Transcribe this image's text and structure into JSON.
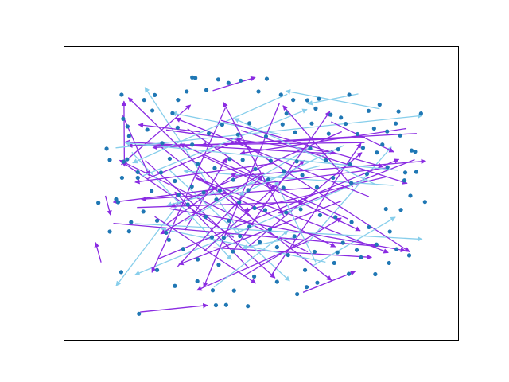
{
  "chart_data": {
    "type": "scatter",
    "title": "",
    "xlabel": "",
    "ylabel": "",
    "axes_visible": false,
    "grid": false,
    "xlim": [
      0,
      100
    ],
    "ylim": [
      0,
      100
    ],
    "colors": {
      "node": "#1f77b4",
      "edge_light": "#87ceeb",
      "edge_purple": "#8a2be2"
    },
    "nodes": [
      [
        14.5,
        23.2
      ],
      [
        19.0,
        9.0
      ],
      [
        38.5,
        11.9
      ],
      [
        23.6,
        23.9
      ],
      [
        25.9,
        36.6
      ],
      [
        8.7,
        46.8
      ],
      [
        11.6,
        37.0
      ],
      [
        16.5,
        37.1
      ],
      [
        15.1,
        60.8
      ],
      [
        10.8,
        65.2
      ],
      [
        11.6,
        61.4
      ],
      [
        13.2,
        48.0
      ],
      [
        16.0,
        61.6
      ],
      [
        18.7,
        55.3
      ],
      [
        18.7,
        57.2
      ],
      [
        14.7,
        55.3
      ],
      [
        16.5,
        69.5
      ],
      [
        16.1,
        72.8
      ],
      [
        21.1,
        71.7
      ],
      [
        15.0,
        75.4
      ],
      [
        14.6,
        83.6
      ],
      [
        20.3,
        81.8
      ],
      [
        22.4,
        78.2
      ],
      [
        23.0,
        83.5
      ],
      [
        27.5,
        77.3
      ],
      [
        28.9,
        81.8
      ],
      [
        31.1,
        84.7
      ],
      [
        33.3,
        89.3
      ],
      [
        39.1,
        88.8
      ],
      [
        41.7,
        87.6
      ],
      [
        44.8,
        88.4
      ],
      [
        51.4,
        89.0
      ],
      [
        55.0,
        83.6
      ],
      [
        58.1,
        81.8
      ],
      [
        61.7,
        81.7
      ],
      [
        64.6,
        82.2
      ],
      [
        67.6,
        76.8
      ],
      [
        72.3,
        83.6
      ],
      [
        77.2,
        78.1
      ],
      [
        80.0,
        80.2
      ],
      [
        81.9,
        71.1
      ],
      [
        84.1,
        73.8
      ],
      [
        84.8,
        77.9
      ],
      [
        88.1,
        64.6
      ],
      [
        90.5,
        77.2
      ],
      [
        89.0,
        64.2
      ],
      [
        86.5,
        57.1
      ],
      [
        86.3,
        54.4
      ],
      [
        87.8,
        49.2
      ],
      [
        91.5,
        47.1
      ],
      [
        85.4,
        44.4
      ],
      [
        81.6,
        44.7
      ],
      [
        82.6,
        37.0
      ],
      [
        77.3,
        38.5
      ],
      [
        72.9,
        40.2
      ],
      [
        68.8,
        41.9
      ],
      [
        64.9,
        42.6
      ],
      [
        60.0,
        44.6
      ],
      [
        56.3,
        43.5
      ],
      [
        51.0,
        44.3
      ],
      [
        48.3,
        45.0
      ],
      [
        44.4,
        47.0
      ],
      [
        38.6,
        47.9
      ],
      [
        35.4,
        50.3
      ],
      [
        32.4,
        52.3
      ],
      [
        28.1,
        54.2
      ],
      [
        24.6,
        57.1
      ],
      [
        22.2,
        50.8
      ],
      [
        29.0,
        49.5
      ],
      [
        31.4,
        46.2
      ],
      [
        35.9,
        42.0
      ],
      [
        41.8,
        40.7
      ],
      [
        44.6,
        35.5
      ],
      [
        49.6,
        33.4
      ],
      [
        54.0,
        31.7
      ],
      [
        56.8,
        29.0
      ],
      [
        61.1,
        23.9
      ],
      [
        64.2,
        19.6
      ],
      [
        68.5,
        26.3
      ],
      [
        70.7,
        33.2
      ],
      [
        74.2,
        30.7
      ],
      [
        79.2,
        32.6
      ],
      [
        75.3,
        28.2
      ],
      [
        69.3,
        29.9
      ],
      [
        63.5,
        30.1
      ],
      [
        58.4,
        35.4
      ],
      [
        52.2,
        37.8
      ],
      [
        47.0,
        38.7
      ],
      [
        42.8,
        30.2
      ],
      [
        39.2,
        25.7
      ],
      [
        33.9,
        27.5
      ],
      [
        30.2,
        31.1
      ],
      [
        26.6,
        34.2
      ],
      [
        37.5,
        35.1
      ],
      [
        40.5,
        34.9
      ],
      [
        33.9,
        60.0
      ],
      [
        38.2,
        58.6
      ],
      [
        42.0,
        61.7
      ],
      [
        45.3,
        61.4
      ],
      [
        48.5,
        58.3
      ],
      [
        52.4,
        61.1
      ],
      [
        55.7,
        57.6
      ],
      [
        59.0,
        60.9
      ],
      [
        62.4,
        65.3
      ],
      [
        66.4,
        61.3
      ],
      [
        69.5,
        65.0
      ],
      [
        72.5,
        59.9
      ],
      [
        75.8,
        65.5
      ],
      [
        79.3,
        63.9
      ],
      [
        82.0,
        58.9
      ],
      [
        76.8,
        56.6
      ],
      [
        72.8,
        53.5
      ],
      [
        68.2,
        55.3
      ],
      [
        64.1,
        52.1
      ],
      [
        60.4,
        56.2
      ],
      [
        55.6,
        51.9
      ],
      [
        51.8,
        54.7
      ],
      [
        46.7,
        51.1
      ],
      [
        42.9,
        54.6
      ],
      [
        39.5,
        51.0
      ],
      [
        36.7,
        70.4
      ],
      [
        40.1,
        73.4
      ],
      [
        44.1,
        70.0
      ],
      [
        47.0,
        73.9
      ],
      [
        51.2,
        69.4
      ],
      [
        55.4,
        73.5
      ],
      [
        58.6,
        70.8
      ],
      [
        62.8,
        73.8
      ],
      [
        67.1,
        70.3
      ],
      [
        71.4,
        73.7
      ],
      [
        74.4,
        70.2
      ],
      [
        78.6,
        72.1
      ],
      [
        24.9,
        67.1
      ],
      [
        28.8,
        72.4
      ],
      [
        32.5,
        66.6
      ],
      [
        26.8,
        61.8
      ],
      [
        20.1,
        43.8
      ],
      [
        23.6,
        40.7
      ],
      [
        17.0,
        40.2
      ],
      [
        13.7,
        47.0
      ],
      [
        84.3,
        31.0
      ],
      [
        87.5,
        28.9
      ],
      [
        82.4,
        26.3
      ],
      [
        78.9,
        22.5
      ],
      [
        72.2,
        22.6
      ],
      [
        59.1,
        15.7
      ],
      [
        54.0,
        19.9
      ],
      [
        48.2,
        21.7
      ],
      [
        43.1,
        16.9
      ],
      [
        37.7,
        17.0
      ],
      [
        33.8,
        20.1
      ],
      [
        28.1,
        18.5
      ],
      [
        41.1,
        12.0
      ],
      [
        46.6,
        11.6
      ],
      [
        61.5,
        18.1
      ],
      [
        32.5,
        89.5
      ],
      [
        36.1,
        85.2
      ],
      [
        49.3,
        84.7
      ],
      [
        56.4,
        77.2
      ],
      [
        63.8,
        78.9
      ],
      [
        70.2,
        75.8
      ],
      [
        85.2,
        69.7
      ],
      [
        80.7,
        66.6
      ],
      [
        89.3,
        57.3
      ]
    ],
    "edges": [
      [
        [
          43.0,
          35.0
        ],
        [
          14.7,
          60.7
        ],
        "edge_purple"
      ],
      [
        [
          61.8,
          30.1
        ],
        [
          14.1,
          61.3
        ],
        "edge_purple"
      ],
      [
        [
          69.8,
          63.4
        ],
        [
          15.5,
          67.5
        ],
        "edge_purple"
      ],
      [
        [
          44.6,
          36.6
        ],
        [
          20.5,
          86.1
        ],
        "edge_light"
      ],
      [
        [
          76.3,
          69.1
        ],
        [
          22.5,
          65.6
        ],
        "edge_purple"
      ],
      [
        [
          30.7,
          37.5
        ],
        [
          41.2,
          62.0
        ],
        "edge_purple"
      ],
      [
        [
          34.6,
          70.9
        ],
        [
          18.9,
          73.4
        ],
        "edge_purple"
      ],
      [
        [
          17.2,
          64.0
        ],
        [
          42.5,
          27.4
        ],
        "edge_light"
      ],
      [
        [
          33.5,
          55.1
        ],
        [
          68.8,
          31.8
        ],
        "edge_purple"
      ],
      [
        [
          14.5,
          59.8
        ],
        [
          32.1,
          80.1
        ],
        "edge_purple"
      ],
      [
        [
          21.0,
          54.9
        ],
        [
          45.0,
          68.6
        ],
        "edge_purple"
      ],
      [
        [
          88.9,
          61.5
        ],
        [
          54.4,
          43.3
        ],
        "edge_purple"
      ],
      [
        [
          61.7,
          33.1
        ],
        [
          83.0,
          65.8
        ],
        "edge_light"
      ],
      [
        [
          37.9,
          31.5
        ],
        [
          78.0,
          28.2
        ],
        "edge_purple"
      ],
      [
        [
          81.6,
          55.6
        ],
        [
          45.6,
          44.1
        ],
        "edge_purple"
      ],
      [
        [
          70.4,
          71.0
        ],
        [
          27.1,
          45.4
        ],
        "edge_purple"
      ],
      [
        [
          14.9,
          76.5
        ],
        [
          21.6,
          56.0
        ],
        "edge_purple"
      ],
      [
        [
          26.6,
          58.1
        ],
        [
          57.2,
          20.2
        ],
        "edge_light"
      ],
      [
        [
          10.5,
          49.2
        ],
        [
          11.8,
          42.6
        ],
        "edge_purple"
      ],
      [
        [
          44.9,
          71.4
        ],
        [
          87.0,
          53.4
        ],
        "edge_purple"
      ],
      [
        [
          37.7,
          85.0
        ],
        [
          48.5,
          89.5
        ],
        "edge_purple"
      ],
      [
        [
          62.4,
          51.8
        ],
        [
          19.6,
          48.0
        ],
        "edge_purple"
      ],
      [
        [
          80.0,
          78.8
        ],
        [
          56.2,
          84.9
        ],
        "edge_light"
      ],
      [
        [
          24.3,
          66.1
        ],
        [
          67.8,
          20.4
        ],
        "edge_purple"
      ],
      [
        [
          83.5,
          52.7
        ],
        [
          30.4,
          57.6
        ],
        "edge_light"
      ],
      [
        [
          70.3,
          47.4
        ],
        [
          29.1,
          25.8
        ],
        "edge_purple"
      ],
      [
        [
          54.9,
          70.1
        ],
        [
          27.3,
          77.4
        ],
        "edge_light"
      ],
      [
        [
          46.4,
          31.5
        ],
        [
          75.5,
          63.9
        ],
        "edge_purple"
      ],
      [
        [
          15.3,
          59.5
        ],
        [
          15.2,
          81.4
        ],
        "edge_purple"
      ],
      [
        [
          77.0,
          55.0
        ],
        [
          18.0,
          22.3
        ],
        "edge_light"
      ],
      [
        [
          52.7,
          22.4
        ],
        [
          75.3,
          67.1
        ],
        "edge_purple"
      ],
      [
        [
          46.9,
          24.5
        ],
        [
          28.1,
          50.5
        ],
        "edge_purple"
      ],
      [
        [
          64.8,
          59.4
        ],
        [
          26.1,
          45.9
        ],
        "edge_light"
      ],
      [
        [
          43.4,
          55.9
        ],
        [
          91.7,
          61.0
        ],
        "edge_purple"
      ],
      [
        [
          13.1,
          65.5
        ],
        [
          90.8,
          76.5
        ],
        "edge_light"
      ],
      [
        [
          31.3,
          72.0
        ],
        [
          53.5,
          51.4
        ],
        "edge_purple"
      ],
      [
        [
          20.6,
          61.2
        ],
        [
          53.5,
          21.2
        ],
        "edge_purple"
      ],
      [
        [
          45.4,
          21.8
        ],
        [
          70.3,
          41.6
        ],
        "edge_purple"
      ],
      [
        [
          76.2,
          67.3
        ],
        [
          16.2,
          66.3
        ],
        "edge_purple"
      ],
      [
        [
          19.3,
          9.6
        ],
        [
          36.4,
          11.9
        ],
        "edge_purple"
      ],
      [
        [
          66.3,
          26.6
        ],
        [
          24.7,
          37.9
        ],
        "edge_light"
      ],
      [
        [
          40.9,
          79.1
        ],
        [
          22.3,
          23.1
        ],
        "edge_purple"
      ],
      [
        [
          89.4,
          70.4
        ],
        [
          34.9,
          66.5
        ],
        "edge_purple"
      ],
      [
        [
          56.6,
          83.8
        ],
        [
          17.4,
          60.4
        ],
        "edge_light"
      ],
      [
        [
          35.5,
          30.3
        ],
        [
          60.9,
          61.3
        ],
        "edge_purple"
      ],
      [
        [
          72.0,
          41.3
        ],
        [
          29.4,
          66.8
        ],
        "edge_purple"
      ],
      [
        [
          23.9,
          27.7
        ],
        [
          84.9,
          61.6
        ],
        "edge_purple"
      ],
      [
        [
          63.8,
          26.6
        ],
        [
          53.5,
          54.4
        ],
        "edge_light"
      ],
      [
        [
          33.3,
          55.4
        ],
        [
          82.2,
          29.8
        ],
        "edge_purple"
      ],
      [
        [
          25.9,
          71.6
        ],
        [
          68.7,
          63.8
        ],
        "edge_purple"
      ],
      [
        [
          19.8,
          55.9
        ],
        [
          61.6,
          78.6
        ],
        "edge_light"
      ],
      [
        [
          61.7,
          33.7
        ],
        [
          33.7,
          17.0
        ],
        "edge_purple"
      ],
      [
        [
          18.0,
          39.7
        ],
        [
          90.8,
          34.4
        ],
        "edge_light"
      ],
      [
        [
          47.4,
          42.1
        ],
        [
          16.3,
          82.6
        ],
        "edge_purple"
      ],
      [
        [
          81.9,
          58.7
        ],
        [
          12.5,
          47.0
        ],
        "edge_purple"
      ],
      [
        [
          54.6,
          80.7
        ],
        [
          35.4,
          18.1
        ],
        "edge_purple"
      ],
      [
        [
          44.5,
          67.8
        ],
        [
          87.6,
          30.1
        ],
        "edge_purple"
      ],
      [
        [
          30.7,
          40.5
        ],
        [
          63.1,
          66.2
        ],
        "edge_light"
      ],
      [
        [
          77.3,
          48.9
        ],
        [
          28.3,
          75.6
        ],
        "edge_purple"
      ],
      [
        [
          55.8,
          42.1
        ],
        [
          40.4,
          81.0
        ],
        "edge_purple"
      ],
      [
        [
          62.9,
          25.2
        ],
        [
          84.0,
          41.9
        ],
        "edge_light"
      ],
      [
        [
          29.5,
          47.3
        ],
        [
          13.2,
          18.5
        ],
        "edge_light"
      ],
      [
        [
          67.7,
          74.4
        ],
        [
          83.6,
          64.1
        ],
        "edge_purple"
      ],
      [
        [
          23.0,
          42.1
        ],
        [
          48.6,
          19.4
        ],
        "edge_purple"
      ],
      [
        [
          79.4,
          52.8
        ],
        [
          43.2,
          75.5
        ],
        "edge_light"
      ],
      [
        [
          53.1,
          60.2
        ],
        [
          18.0,
          53.8
        ],
        "edge_purple"
      ],
      [
        [
          34.9,
          62.9
        ],
        [
          75.1,
          37.3
        ],
        "edge_purple"
      ],
      [
        [
          86.8,
          72.1
        ],
        [
          44.7,
          63.6
        ],
        "edge_purple"
      ],
      [
        [
          9.4,
          26.5
        ],
        [
          8.0,
          33.3
        ],
        "edge_purple"
      ],
      [
        [
          60.6,
          16.3
        ],
        [
          73.8,
          23.4
        ],
        "edge_purple"
      ],
      [
        [
          59.2,
          35.2
        ],
        [
          45.2,
          31.4
        ],
        "edge_light"
      ],
      [
        [
          26.1,
          39.6
        ],
        [
          43.6,
          56.9
        ],
        "edge_purple"
      ],
      [
        [
          74.6,
          83.9
        ],
        [
          61.8,
          80.5
        ],
        "edge_light"
      ],
      [
        [
          50.6,
          57.1
        ],
        [
          24.5,
          36.2
        ],
        "edge_purple"
      ],
      [
        [
          18.5,
          45.2
        ],
        [
          60.6,
          47.1
        ],
        "edge_purple"
      ],
      [
        [
          39.8,
          74.9
        ],
        [
          80.9,
          59.0
        ],
        "edge_purple"
      ],
      [
        [
          28.8,
          25.1
        ],
        [
          50.3,
          56.1
        ],
        "edge_purple"
      ],
      [
        [
          70.9,
          66.3
        ],
        [
          44.4,
          49.4
        ],
        "edge_light"
      ],
      [
        [
          42.8,
          30.3
        ],
        [
          67.4,
          77.9
        ],
        "edge_purple"
      ],
      [
        [
          84.6,
          57.9
        ],
        [
          15.5,
          67.2
        ],
        "edge_light"
      ],
      [
        [
          12.5,
          39.8
        ],
        [
          79.6,
          32.0
        ],
        "edge_purple"
      ],
      [
        [
          26.8,
          44.8
        ],
        [
          86.5,
          30.5
        ],
        "edge_purple"
      ],
      [
        [
          73.2,
          52.2
        ],
        [
          55.5,
          79.9
        ],
        "edge_purple"
      ],
      [
        [
          38.0,
          18.1
        ],
        [
          56.8,
          37.3
        ],
        "edge_light"
      ]
    ]
  }
}
